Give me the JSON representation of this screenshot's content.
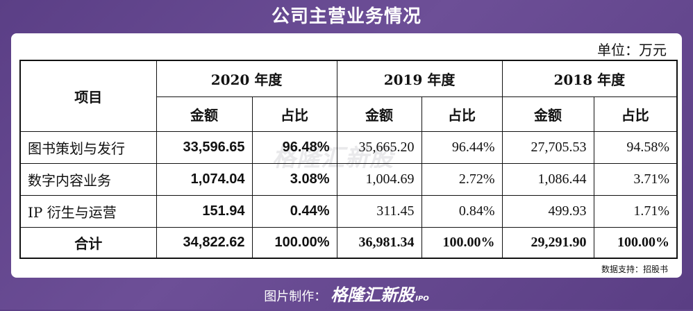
{
  "header": {
    "title": "公司主营业务情况"
  },
  "unit_label": "单位：万元",
  "table": {
    "item_header": "项目",
    "years": [
      "2020 年度",
      "2019 年度",
      "2018 年度"
    ],
    "sub_headers": [
      "金额",
      "占比"
    ],
    "rows": [
      {
        "item": "图书策划与发行",
        "vals": [
          "33,596.65",
          "96.48%",
          "35,665.20",
          "96.44%",
          "27,705.53",
          "94.58%"
        ]
      },
      {
        "item": "数字内容业务",
        "vals": [
          "1,074.04",
          "3.08%",
          "1,004.69",
          "2.72%",
          "1,086.44",
          "3.71%"
        ]
      },
      {
        "item": "IP 衍生与运营",
        "vals": [
          "151.94",
          "0.44%",
          "311.45",
          "0.84%",
          "499.93",
          "1.71%"
        ]
      }
    ],
    "total": {
      "item": "合计",
      "vals": [
        "34,822.62",
        "100.00%",
        "36,981.34",
        "100.00%",
        "29,291.90",
        "100.00%"
      ]
    }
  },
  "source_note": "数据支持：招股书",
  "watermark": "格隆汇新股",
  "footer": {
    "prefix": "图片制作：",
    "brand": "格隆汇新股",
    "suffix": "IPO"
  }
}
